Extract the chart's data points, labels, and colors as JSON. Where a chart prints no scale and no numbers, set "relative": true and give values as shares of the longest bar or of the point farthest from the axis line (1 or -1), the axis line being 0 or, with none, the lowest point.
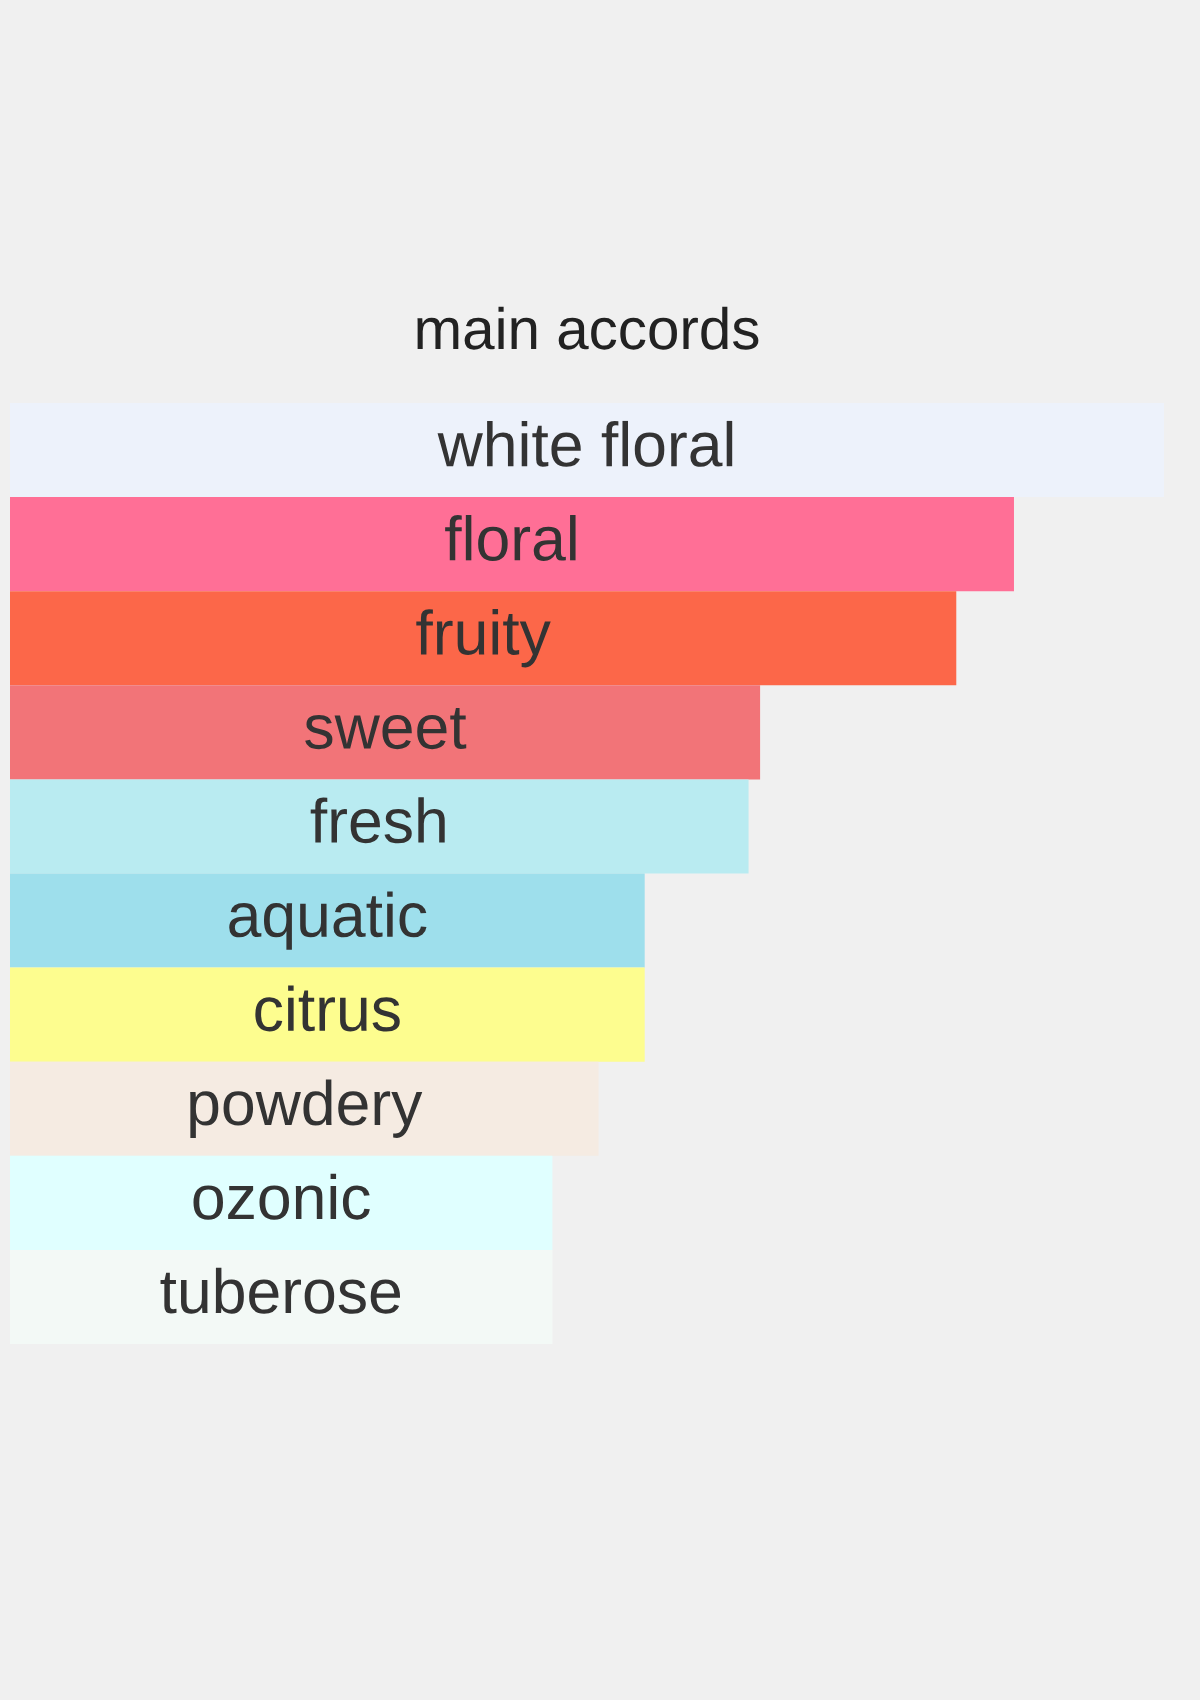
{
  "chart_data": {
    "type": "bar",
    "title": "main accords",
    "orientation": "horizontal",
    "relative": true,
    "categories": [
      "white floral",
      "floral",
      "fruity",
      "sweet",
      "fresh",
      "aquatic",
      "citrus",
      "powdery",
      "ozonic",
      "tuberose"
    ],
    "values": [
      1,
      0.87,
      0.82,
      0.65,
      0.64,
      0.55,
      0.55,
      0.51,
      0.47,
      0.47
    ],
    "colors": [
      "#edf2fb",
      "#ff6f96",
      "#fc6749",
      "#f27478",
      "#b9ebf1",
      "#9edfec",
      "#fdfd8f",
      "#f5ebe2",
      "#e0ffff",
      "#f3f9f6"
    ]
  }
}
